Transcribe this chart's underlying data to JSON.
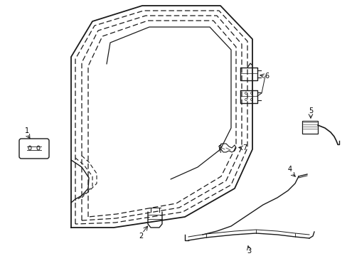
{
  "bg_color": "#ffffff",
  "line_color": "#1a1a1a",
  "label_color": "#000000",
  "figsize": [
    4.89,
    3.6
  ],
  "dpi": 100
}
